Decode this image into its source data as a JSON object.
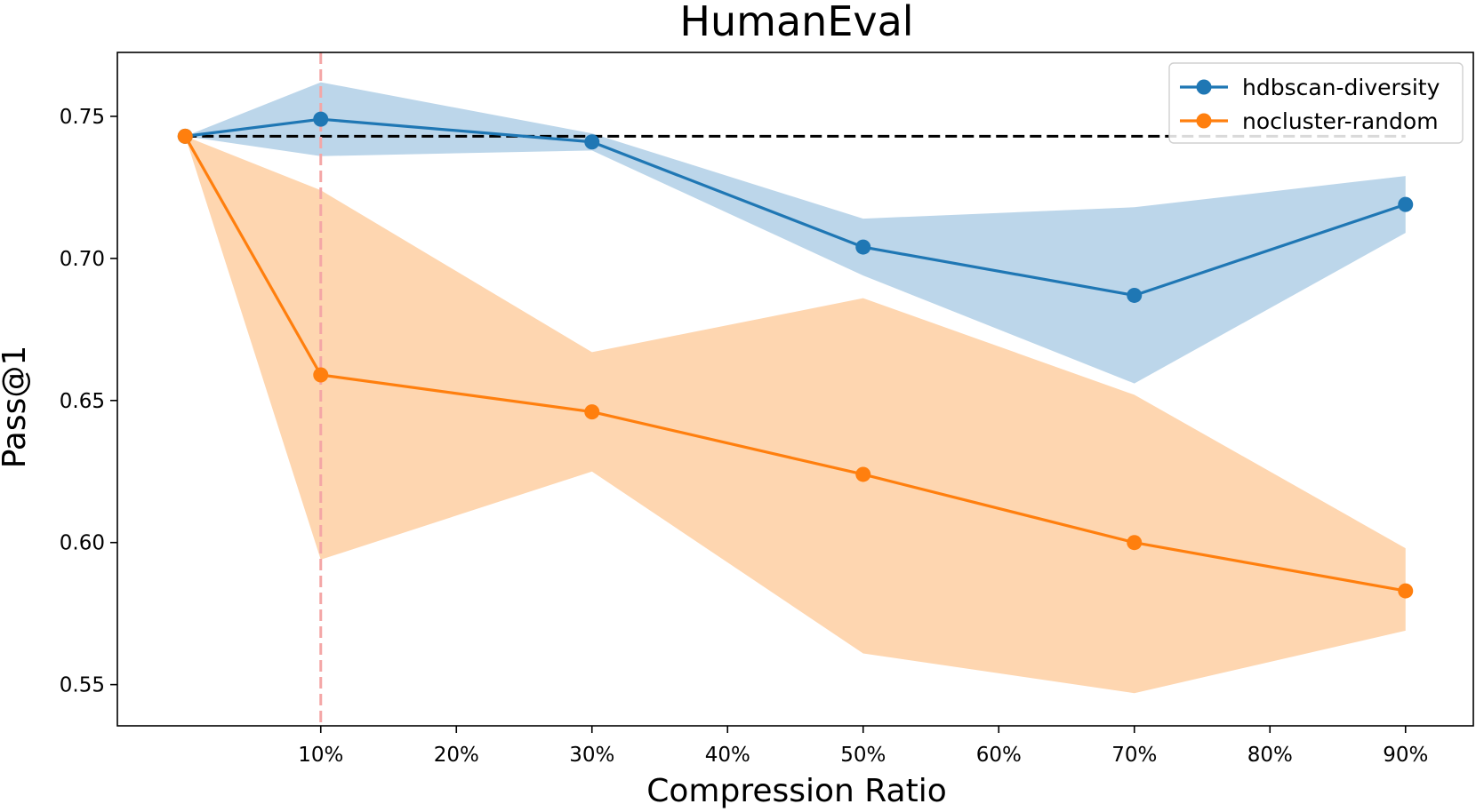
{
  "chart_data": {
    "type": "line",
    "title": "HumanEval",
    "xlabel": "Compression Ratio",
    "ylabel": "Pass@1",
    "xlim": [
      -5,
      95
    ],
    "ylim": [
      0.5355,
      0.7725
    ],
    "x_ticks": [
      10,
      20,
      30,
      40,
      50,
      60,
      70,
      80,
      90
    ],
    "x_tick_labels": [
      "10%",
      "20%",
      "30%",
      "40%",
      "50%",
      "60%",
      "70%",
      "80%",
      "90%"
    ],
    "y_ticks": [
      0.55,
      0.6,
      0.65,
      0.7,
      0.75
    ],
    "y_tick_labels": [
      "0.55",
      "0.60",
      "0.65",
      "0.70",
      "0.75"
    ],
    "grid": false,
    "legend_position": "top-right",
    "baseline": {
      "value": 0.743,
      "style": "dashed",
      "color": "#000000"
    },
    "vline": {
      "x": 10,
      "style": "dashed",
      "color": "#f4a6a6"
    },
    "series": [
      {
        "name": "hdbscan-diversity",
        "color": "#1f77b4",
        "band_color": "#bcd6ea",
        "x": [
          0,
          10,
          30,
          50,
          70,
          90
        ],
        "values": [
          0.743,
          0.749,
          0.741,
          0.704,
          0.687,
          0.719
        ],
        "lower": [
          0.743,
          0.736,
          0.738,
          0.694,
          0.656,
          0.709
        ],
        "upper": [
          0.743,
          0.762,
          0.744,
          0.714,
          0.718,
          0.729
        ]
      },
      {
        "name": "nocluster-random",
        "color": "#ff7f0e",
        "band_color": "#fed6b0",
        "x": [
          0,
          10,
          30,
          50,
          70,
          90
        ],
        "values": [
          0.743,
          0.659,
          0.646,
          0.624,
          0.6,
          0.583
        ],
        "lower": [
          0.743,
          0.594,
          0.625,
          0.561,
          0.547,
          0.569
        ],
        "upper": [
          0.743,
          0.724,
          0.667,
          0.686,
          0.652,
          0.598
        ]
      }
    ]
  }
}
